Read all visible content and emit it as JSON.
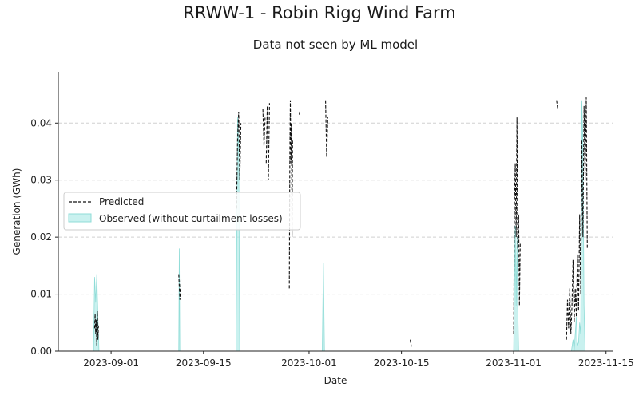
{
  "chart_data": {
    "type": "line",
    "title": "RRWW-1 - Robin Rigg Wind Farm",
    "subtitle": "Data not seen by ML model",
    "xlabel": "Date",
    "ylabel": "Generation (GWh)",
    "x_ticks": [
      "2023-09-01",
      "2023-09-15",
      "2023-10-01",
      "2023-10-15",
      "2023-11-01",
      "2023-11-15"
    ],
    "y_ticks": [
      "0.00",
      "0.01",
      "0.02",
      "0.03",
      "0.04"
    ],
    "xlim": [
      "2023-08-24",
      "2023-11-16"
    ],
    "ylim": [
      0,
      0.049
    ],
    "grid": "horizontal dashed",
    "legend_position": "center-left",
    "colors": {
      "predicted": "#111111",
      "observed_fill": "#b2ebe8",
      "observed_edge": "#8fdcd7",
      "grid": "#d0d0d0"
    },
    "series": [
      {
        "name": "Predicted",
        "style": "dashed-line",
        "segments": [
          [
            [
              "2023-08-29T12:00",
              0.004
            ],
            [
              "2023-08-29T14:00",
              0.0065
            ],
            [
              "2023-08-29T16:00",
              0.003
            ],
            [
              "2023-08-29T18:00",
              0.0055
            ],
            [
              "2023-08-29T20:00",
              0.001
            ],
            [
              "2023-08-29T22:00",
              0.007
            ],
            [
              "2023-08-30T00:00",
              0.002
            ],
            [
              "2023-08-30T02:00",
              0.0045
            ]
          ],
          [
            [
              "2023-09-11T06:00",
              0.0135
            ],
            [
              "2023-09-11T10:00",
              0.009
            ],
            [
              "2023-09-11T14:00",
              0.0125
            ]
          ],
          [
            [
              "2023-09-20T00:00",
              0.025
            ],
            [
              "2023-09-20T04:00",
              0.037
            ],
            [
              "2023-09-20T08:00",
              0.042
            ],
            [
              "2023-09-20T12:00",
              0.03
            ],
            [
              "2023-09-20T16:00",
              0.04
            ]
          ],
          [
            [
              "2023-09-24T00:00",
              0.0425
            ],
            [
              "2023-09-24T04:00",
              0.036
            ],
            [
              "2023-09-24T08:00",
              0.041
            ]
          ],
          [
            [
              "2023-09-24T12:00",
              0.033
            ],
            [
              "2023-09-24T16:00",
              0.043
            ],
            [
              "2023-09-24T20:00",
              0.03
            ],
            [
              "2023-09-25T00:00",
              0.0435
            ]
          ],
          [
            [
              "2023-09-28T00:00",
              0.011
            ],
            [
              "2023-09-28T02:00",
              0.035
            ],
            [
              "2023-09-28T04:00",
              0.044
            ],
            [
              "2023-09-28T06:00",
              0.033
            ],
            [
              "2023-09-28T08:00",
              0.04
            ],
            [
              "2023-09-28T10:00",
              0.02
            ],
            [
              "2023-09-28T12:00",
              0.037
            ]
          ],
          [
            [
              "2023-09-29T12:00",
              0.0415
            ],
            [
              "2023-09-29T14:00",
              0.042
            ]
          ],
          [
            [
              "2023-10-03T12:00",
              0.044
            ],
            [
              "2023-10-03T16:00",
              0.034
            ],
            [
              "2023-10-03T20:00",
              0.041
            ]
          ],
          [
            [
              "2023-10-16T08:00",
              0.002
            ],
            [
              "2023-10-16T12:00",
              0.0008
            ]
          ],
          [
            [
              "2023-11-01T00:00",
              0.003
            ],
            [
              "2023-11-01T03:00",
              0.026
            ],
            [
              "2023-11-01T06:00",
              0.033
            ],
            [
              "2023-11-01T09:00",
              0.02
            ],
            [
              "2023-11-01T12:00",
              0.041
            ],
            [
              "2023-11-01T15:00",
              0.018
            ],
            [
              "2023-11-01T18:00",
              0.024
            ],
            [
              "2023-11-01T21:00",
              0.008
            ],
            [
              "2023-11-02T00:00",
              0.019
            ]
          ],
          [
            [
              "2023-11-07T12:00",
              0.044
            ],
            [
              "2023-11-07T16:00",
              0.0425
            ]
          ],
          [
            [
              "2023-11-09T00:00",
              0.002
            ],
            [
              "2023-11-09T04:00",
              0.009
            ],
            [
              "2023-11-09T08:00",
              0.004
            ],
            [
              "2023-11-09T12:00",
              0.011
            ],
            [
              "2023-11-09T16:00",
              0.003
            ],
            [
              "2023-11-09T20:00",
              0.008
            ],
            [
              "2023-11-10T00:00",
              0.016
            ],
            [
              "2023-11-10T04:00",
              0.005
            ],
            [
              "2023-11-10T08:00",
              0.011
            ],
            [
              "2023-11-10T12:00",
              0.006
            ],
            [
              "2023-11-10T16:00",
              0.017
            ],
            [
              "2023-11-10T20:00",
              0.007
            ],
            [
              "2023-11-11T00:00",
              0.024
            ],
            [
              "2023-11-11T04:00",
              0.01
            ],
            [
              "2023-11-11T08:00",
              0.037
            ],
            [
              "2023-11-11T12:00",
              0.02
            ],
            [
              "2023-11-11T16:00",
              0.043
            ],
            [
              "2023-11-11T20:00",
              0.03
            ],
            [
              "2023-11-12T00:00",
              0.0445
            ],
            [
              "2023-11-12T04:00",
              0.018
            ]
          ]
        ]
      },
      {
        "name": "Observed (without curtailment losses)",
        "style": "filled-area",
        "segments": [
          [
            [
              "2023-08-29T08:00",
              0.0
            ],
            [
              "2023-08-29T12:00",
              0.013
            ],
            [
              "2023-08-29T16:00",
              0.0085
            ],
            [
              "2023-08-29T20:00",
              0.0135
            ],
            [
              "2023-08-30T00:00",
              0.006
            ],
            [
              "2023-08-30T04:00",
              0.0
            ]
          ],
          [
            [
              "2023-09-11T06:00",
              0.0
            ],
            [
              "2023-09-11T08:00",
              0.018
            ],
            [
              "2023-09-11T10:00",
              0.0
            ]
          ],
          [
            [
              "2023-09-19T22:00",
              0.0
            ],
            [
              "2023-09-20T04:00",
              0.041
            ],
            [
              "2023-09-20T08:00",
              0.036
            ],
            [
              "2023-09-20T12:00",
              0.0
            ]
          ],
          [
            [
              "2023-10-03T00:00",
              0.0
            ],
            [
              "2023-10-03T04:00",
              0.0155
            ],
            [
              "2023-10-03T08:00",
              0.0
            ]
          ],
          [
            [
              "2023-11-01T00:00",
              0.0
            ],
            [
              "2023-11-01T03:00",
              0.012
            ],
            [
              "2023-11-01T06:00",
              0.022
            ],
            [
              "2023-11-01T09:00",
              0.008
            ],
            [
              "2023-11-01T12:00",
              0.02
            ],
            [
              "2023-11-01T15:00",
              0.008
            ],
            [
              "2023-11-01T18:00",
              0.0
            ]
          ],
          [
            [
              "2023-11-09T18:00",
              0.0
            ],
            [
              "2023-11-10T00:00",
              0.002
            ],
            [
              "2023-11-10T04:00",
              0.0
            ],
            [
              "2023-11-10T12:00",
              0.006
            ],
            [
              "2023-11-10T16:00",
              0.001
            ],
            [
              "2023-11-10T20:00",
              0.0015
            ],
            [
              "2023-11-11T00:00",
              0.005
            ],
            [
              "2023-11-11T04:00",
              0.003
            ],
            [
              "2023-11-11T08:00",
              0.044
            ],
            [
              "2023-11-11T12:00",
              0.036
            ],
            [
              "2023-11-11T16:00",
              0.008
            ],
            [
              "2023-11-11T20:00",
              0.0
            ]
          ]
        ]
      }
    ],
    "legend": [
      {
        "label": "Predicted",
        "marker": "dashed-line"
      },
      {
        "label": "Observed (without curtailment losses)",
        "marker": "filled-patch"
      }
    ]
  }
}
